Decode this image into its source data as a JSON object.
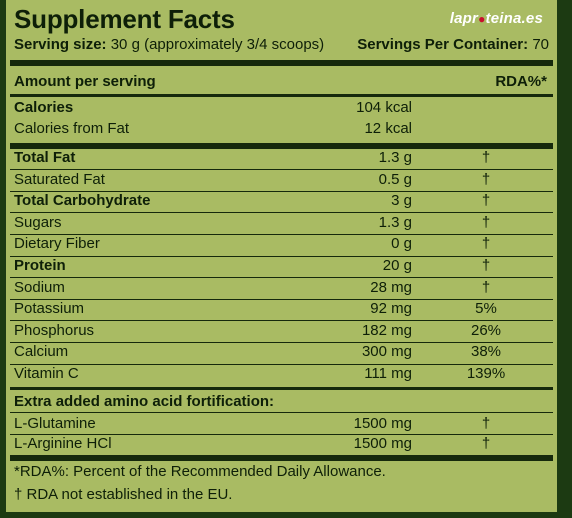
{
  "title": "Supplement Facts",
  "logo": {
    "left": "lapr",
    "dot": "●",
    "right": "teina.es"
  },
  "serving": {
    "size_label": "Serving size:",
    "size_value": "30 g (approximately 3/4 scoops)",
    "per_container_label": "Servings Per Container:",
    "per_container_value": "70"
  },
  "header": {
    "amount": "Amount per serving",
    "rda": "RDA%*"
  },
  "calories": [
    {
      "name": "Calories",
      "amount": "104 kcal",
      "bold": true
    },
    {
      "name": "Calories from Fat",
      "amount": "12 kcal",
      "bold": false
    }
  ],
  "nutrients": [
    {
      "name": "Total Fat",
      "amount": "1.3 g",
      "rda": "†",
      "bold": true
    },
    {
      "name": "Saturated Fat",
      "amount": "0.5 g",
      "rda": "†",
      "bold": false
    },
    {
      "name": "Total Carbohydrate",
      "amount": "3 g",
      "rda": "†",
      "bold": true
    },
    {
      "name": "Sugars",
      "amount": "1.3 g",
      "rda": "†",
      "bold": false
    },
    {
      "name": "Dietary Fiber",
      "amount": "0 g",
      "rda": "†",
      "bold": false
    },
    {
      "name": "Protein",
      "amount": "20 g",
      "rda": "†",
      "bold": true
    },
    {
      "name": "Sodium",
      "amount": "28 mg",
      "rda": "†",
      "bold": false
    },
    {
      "name": "Potassium",
      "amount": "92 mg",
      "rda": "5%",
      "bold": false
    },
    {
      "name": "Phosphorus",
      "amount": "182 mg",
      "rda": "26%",
      "bold": false
    },
    {
      "name": "Calcium",
      "amount": "300 mg",
      "rda": "38%",
      "bold": false
    },
    {
      "name": "Vitamin C",
      "amount": "111 mg",
      "rda": "139%",
      "bold": false
    }
  ],
  "amino": {
    "heading": "Extra added amino acid fortification:",
    "items": [
      {
        "name": "L-Glutamine",
        "amount": "1500 mg",
        "rda": "†"
      },
      {
        "name": "L-Arginine HCl",
        "amount": "1500 mg",
        "rda": "†"
      }
    ]
  },
  "footnotes": [
    "*RDA%: Percent of the Recommended Daily Allowance.",
    "† RDA not established in the EU."
  ]
}
